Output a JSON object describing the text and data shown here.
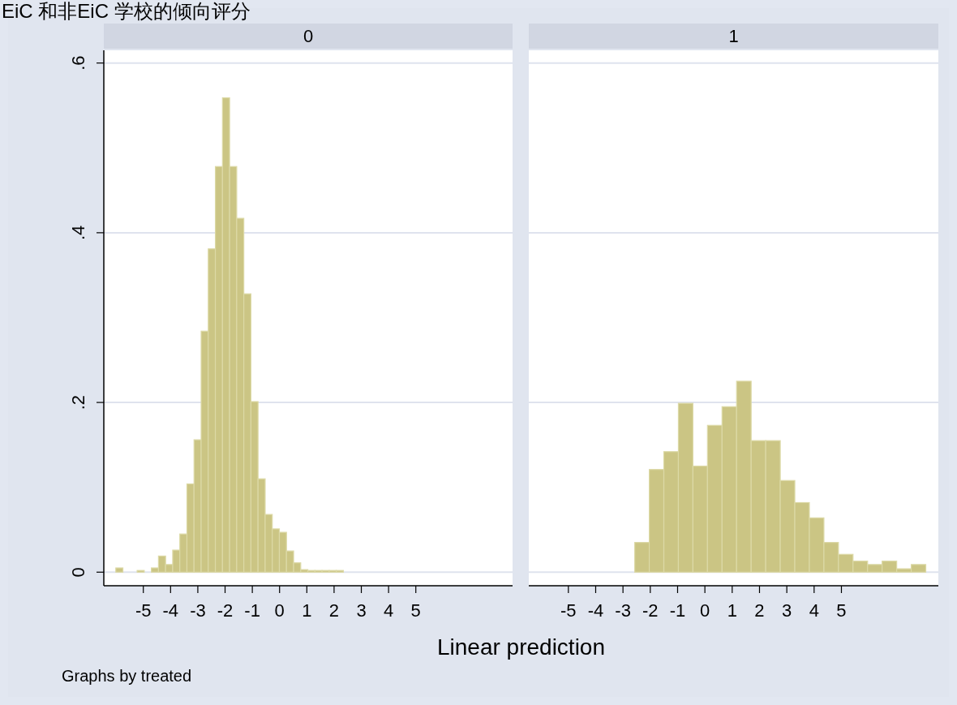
{
  "chart_data": [
    {
      "type": "histogram",
      "title": "EiC 和非EiC 学校的倾向评分",
      "subtitle": "0",
      "xlabel": "Linear prediction",
      "annotations": [
        "Graphs by treated"
      ],
      "color": "#cbc584",
      "bins": [
        -6.01,
        -5.749,
        -5.488,
        -5.227,
        -4.966,
        -4.705,
        -4.444,
        -4.183,
        -3.922,
        -3.661,
        -3.4,
        -3.139,
        -2.878,
        -2.617,
        -2.356,
        -2.095,
        -1.834,
        -1.573,
        -1.312,
        -1.051,
        -0.79,
        -0.529,
        -0.268,
        -0.007,
        0.254,
        0.515,
        0.776,
        1.037,
        1.298,
        1.559,
        1.82,
        2.081,
        2.342
      ],
      "values": [
        0.005,
        0,
        0,
        0.002,
        0,
        0.005,
        0.019,
        0.009,
        0.026,
        0.045,
        0.104,
        0.156,
        0.284,
        0.381,
        0.478,
        0.559,
        0.478,
        0.417,
        0.328,
        0.201,
        0.11,
        0.068,
        0.051,
        0.047,
        0.025,
        0.011,
        0.003,
        0.002,
        0.002,
        0.002,
        0.002,
        0.002
      ],
      "xlim": [
        -6.45,
        8.55
      ],
      "xticks": [
        -5,
        -4,
        -3,
        -2,
        -1,
        0,
        1,
        2,
        3,
        4,
        5
      ],
      "ylim": [
        -0.016,
        0.615
      ],
      "yticks": [
        0,
        {
          "value": 0.2,
          "label": ".2"
        },
        {
          "value": 0.4,
          "label": ".4"
        },
        {
          "value": 0.6,
          "label": ".6"
        }
      ],
      "grid": "y"
    },
    {
      "type": "histogram",
      "subtitle": "1",
      "color": "#cbc584",
      "bins": [
        -2.57,
        -2.037,
        -1.504,
        -0.971,
        -0.438,
        0.095,
        0.628,
        1.161,
        1.694,
        2.227,
        2.76,
        3.293,
        3.826,
        4.359,
        4.892,
        5.425,
        5.958,
        6.491,
        7.024,
        7.557,
        8.09
      ],
      "values": [
        0.035,
        0.121,
        0.142,
        0.199,
        0.125,
        0.173,
        0.195,
        0.225,
        0.155,
        0.155,
        0.108,
        0.082,
        0.064,
        0.035,
        0.021,
        0.013,
        0.009,
        0.013,
        0.004,
        0.009
      ],
      "xlim": [
        -6.45,
        8.55
      ],
      "xticks": [
        -5,
        -4,
        -3,
        -2,
        -1,
        0,
        1,
        2,
        3,
        4,
        5
      ],
      "ylim": [
        -0.016,
        0.615
      ],
      "yticks": [
        0,
        0.2,
        0.4,
        0.6
      ],
      "grid": "y",
      "tick_labels": "x"
    }
  ]
}
